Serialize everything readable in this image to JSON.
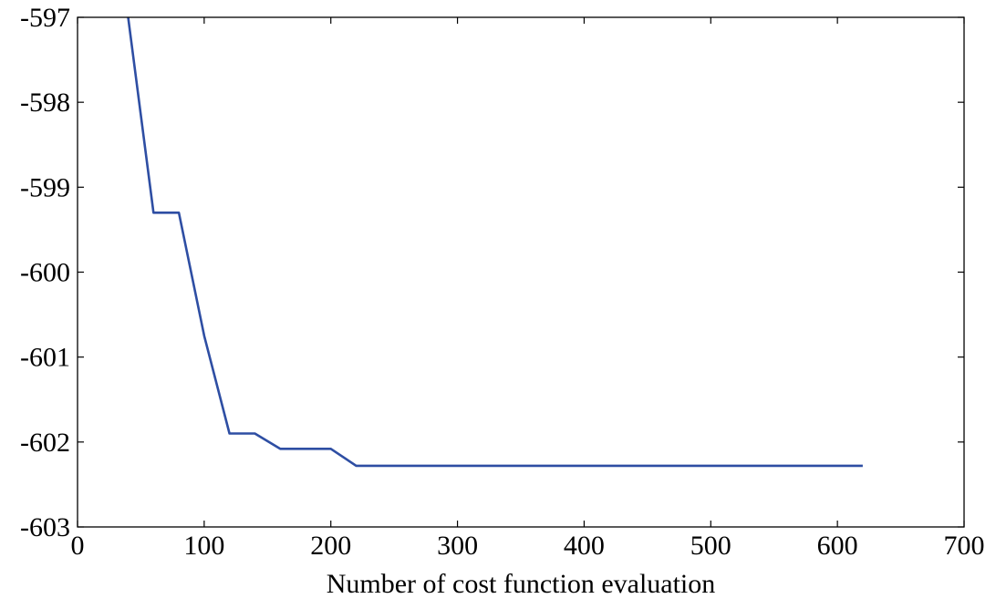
{
  "chart_data": {
    "type": "line",
    "title": "",
    "xlabel": "Number of cost function evaluation",
    "ylabel": "",
    "xlim": [
      0,
      700
    ],
    "ylim": [
      -603,
      -597
    ],
    "xticks": [
      0,
      100,
      200,
      300,
      400,
      500,
      600,
      700
    ],
    "yticks": [
      -597,
      -598,
      -599,
      -600,
      -601,
      -602,
      -603
    ],
    "xtick_labels": [
      "0",
      "100",
      "200",
      "300",
      "400",
      "500",
      "600",
      "700"
    ],
    "ytick_labels": [
      "-597",
      "-598",
      "-599",
      "-600",
      "-601",
      "-602",
      "-603"
    ],
    "grid": false,
    "series": [
      {
        "color": "#2e4ea3",
        "x": [
          40,
          60,
          80,
          100,
          120,
          140,
          160,
          180,
          200,
          220,
          240,
          260,
          280,
          300,
          320,
          340,
          360,
          380,
          400,
          420,
          440,
          460,
          480,
          500,
          520,
          540,
          560,
          580,
          600,
          620
        ],
        "y": [
          -597.0,
          -599.3,
          -599.3,
          -600.75,
          -601.9,
          -601.9,
          -602.08,
          -602.08,
          -602.08,
          -602.28,
          -602.28,
          -602.28,
          -602.28,
          -602.28,
          -602.28,
          -602.28,
          -602.28,
          -602.28,
          -602.28,
          -602.28,
          -602.28,
          -602.28,
          -602.28,
          -602.28,
          -602.28,
          -602.28,
          -602.28,
          -602.28,
          -602.28,
          -602.28
        ]
      }
    ]
  }
}
